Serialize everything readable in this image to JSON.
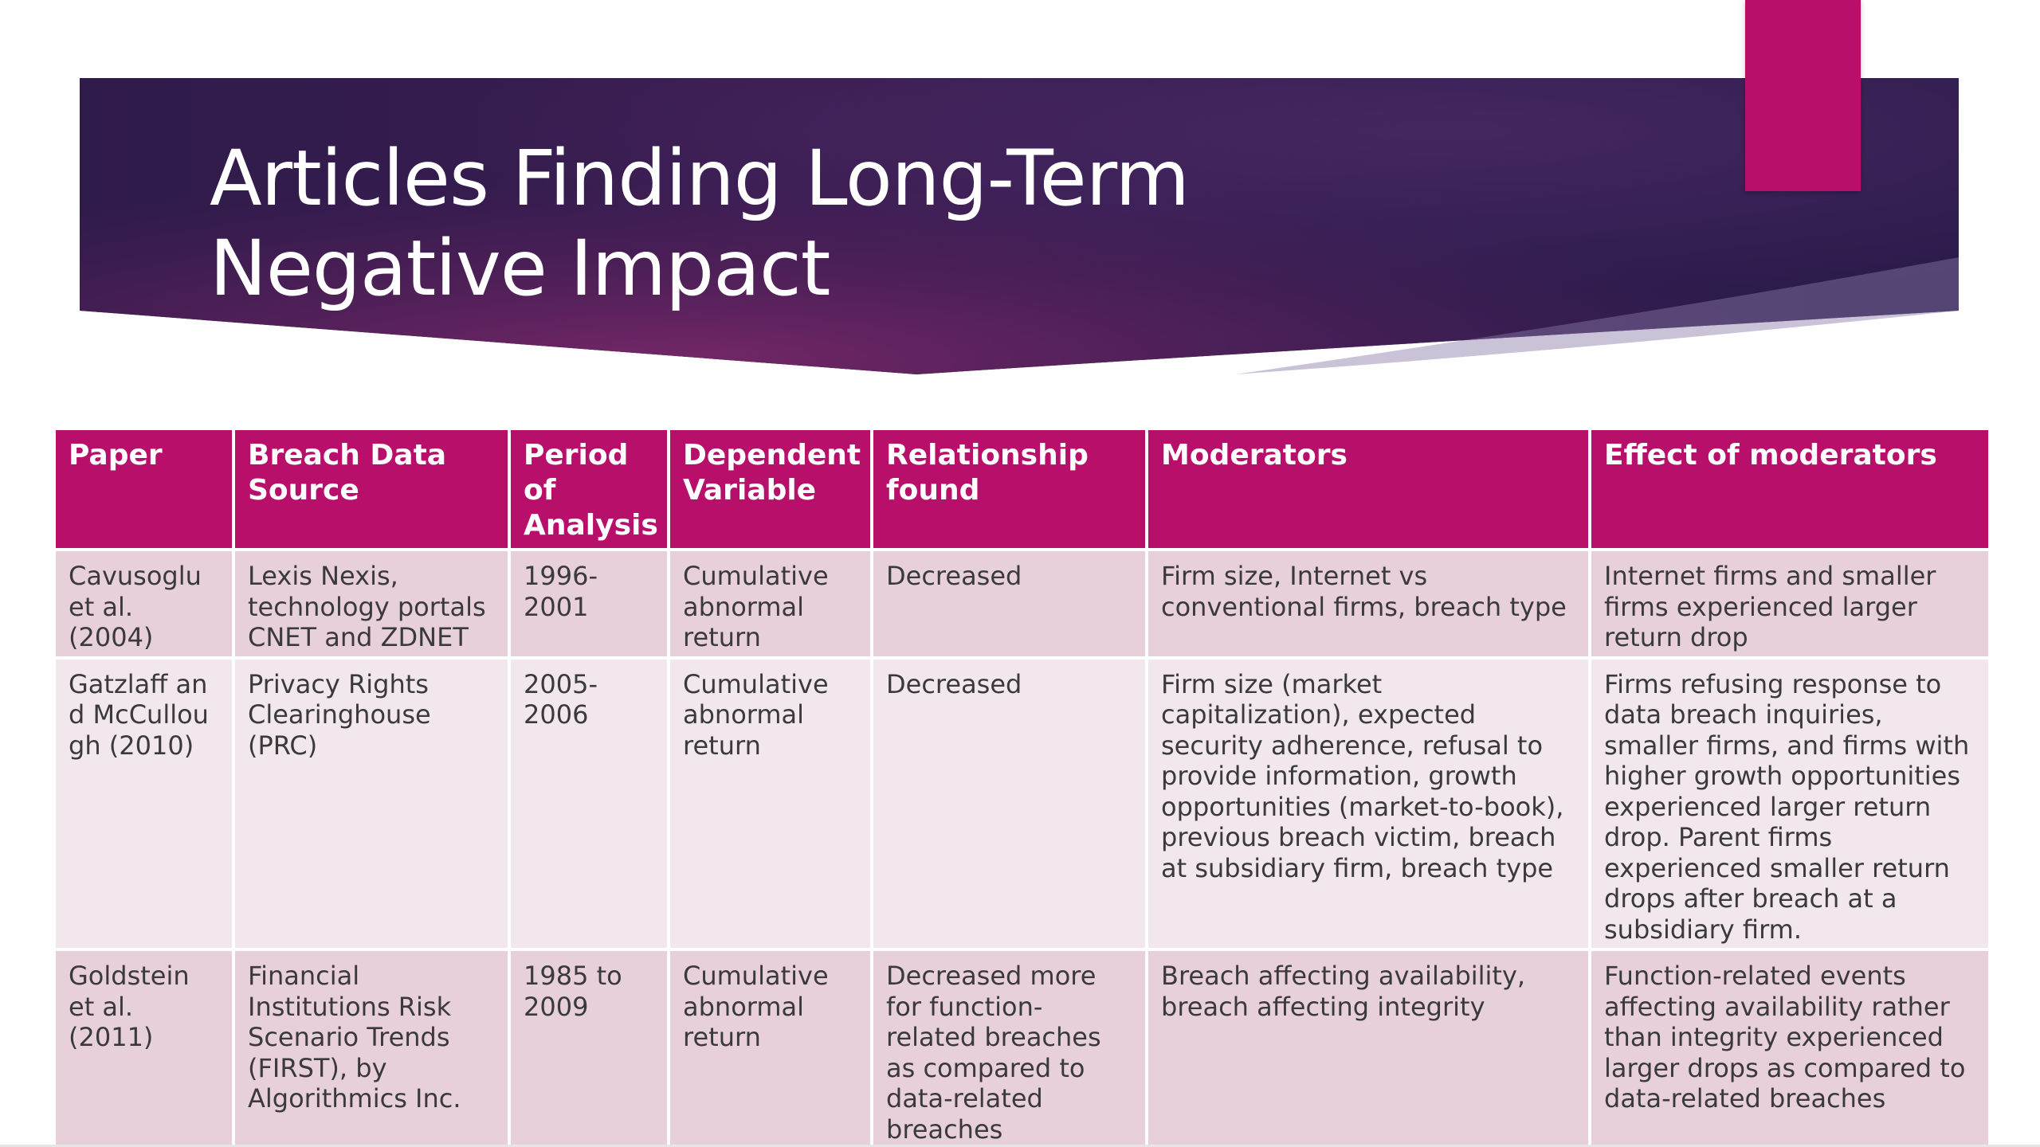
{
  "slide": {
    "title_line_1": "Articles Finding Long-Term",
    "title_line_2": "Negative Impact"
  },
  "colors": {
    "accent": "#b80f6a",
    "banner_dark": "#2a1b4a",
    "banner_mid": "#6b2566",
    "row_odd": "#e8d0db",
    "row_even": "#f2e7ec",
    "header_text": "#ffffff",
    "body_text": "#3a3a3a"
  },
  "table": {
    "headers": [
      "Paper",
      "Breach Data Source",
      "Period of Analysis",
      "Dependent Variable",
      "Relationship found",
      "Moderators",
      "Effect of moderators"
    ],
    "rows": [
      {
        "paper": "Cavusoglu et al. (2004)",
        "source": "Lexis Nexis, technology portals CNET and ZDNET",
        "period": "1996-2001",
        "dependent": "Cumulative abnormal return",
        "relationship": "Decreased",
        "moderators": "Firm size, Internet vs conventional firms, breach type",
        "effect": "Internet firms and smaller firms experienced larger return drop"
      },
      {
        "paper": "Gatzlaff and McCullough (2010)",
        "source": "Privacy Rights Clearinghouse (PRC)",
        "period": "2005-2006",
        "dependent": "Cumulative abnormal return",
        "relationship": "Decreased",
        "moderators": "Firm size (market capitalization), expected security adherence, refusal to provide information, growth opportunities (market-to-book), previous breach victim, breach at subsidiary firm, breach type",
        "effect": "Firms refusing response to data breach inquiries, smaller firms, and firms with higher growth opportunities experienced larger return drop. Parent firms experienced smaller return drops after breach at a subsidiary firm."
      },
      {
        "paper": "Goldstein et al. (2011)",
        "source": "Financial Institutions Risk Scenario Trends (FIRST), by Algorithmics Inc.",
        "period": "1985 to 2009",
        "dependent": "Cumulative abnormal return",
        "relationship": "Decreased more for function-related breaches as compared to data-related breaches",
        "moderators": "Breach affecting availability, breach affecting integrity",
        "effect": "Function-related events affecting availability rather than integrity experienced larger drops as compared to data-related breaches"
      }
    ]
  }
}
